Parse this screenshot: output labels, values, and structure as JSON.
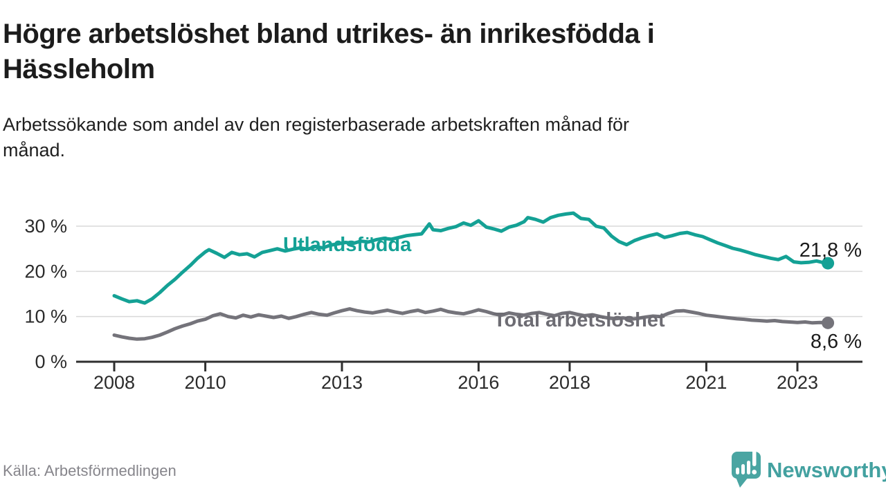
{
  "header": {
    "title_lines": [
      "Högre arbetslöshet bland utrikes- än inrikesfödda i",
      "Hässleholm"
    ],
    "subtitle_lines": [
      "Arbetssökande som andel av den registerbaserade arbetskraften månad för",
      "månad."
    ]
  },
  "footer": {
    "source": "Källa: Arbetsförmedlingen",
    "logo_text": "Newsworthy"
  },
  "colors": {
    "teal": "#14a195",
    "gray_line": "#74737a",
    "gray_label": "#6d6c73",
    "text_dark": "#1c1c1c",
    "axis": "#2f2f2f",
    "tick_text": "#2b2b2b",
    "gridline": "#d9d9d9",
    "source_text": "#86858b",
    "logo_teal": "#4aa5a2"
  },
  "chart_data": {
    "type": "line",
    "title": "Högre arbetslöshet bland utrikes- än inrikesfödda i Hässleholm",
    "subtitle": "Arbetssökande som andel av den registerbaserade arbetskraften månad för månad.",
    "xlabel": "",
    "ylabel": "",
    "x_unit": "year (monthly data)",
    "y_unit": "%",
    "xlim": [
      2007.15,
      2024.45
    ],
    "ylim": [
      0,
      34
    ],
    "grid": "horizontal",
    "legend_position": "inline-labels",
    "x_ticks": [
      2008,
      2010,
      2013,
      2016,
      2018,
      2021,
      2023
    ],
    "y_ticks": [
      0,
      10,
      20,
      30
    ],
    "y_tick_labels": [
      "0 %",
      "10 %",
      "20 %",
      "30 %"
    ],
    "series": [
      {
        "name": "Utlandsfödda",
        "color_key": "teal",
        "end_label": "21,8 %",
        "end_value": 21.8,
        "points": [
          [
            2008.0,
            14.6
          ],
          [
            2008.17,
            13.9
          ],
          [
            2008.33,
            13.3
          ],
          [
            2008.5,
            13.5
          ],
          [
            2008.67,
            13.0
          ],
          [
            2008.83,
            13.9
          ],
          [
            2009.0,
            15.3
          ],
          [
            2009.17,
            16.9
          ],
          [
            2009.33,
            18.2
          ],
          [
            2009.5,
            19.8
          ],
          [
            2009.67,
            21.3
          ],
          [
            2009.83,
            22.9
          ],
          [
            2010.0,
            24.3
          ],
          [
            2010.08,
            24.8
          ],
          [
            2010.25,
            24.0
          ],
          [
            2010.42,
            23.1
          ],
          [
            2010.58,
            24.2
          ],
          [
            2010.75,
            23.7
          ],
          [
            2010.92,
            23.9
          ],
          [
            2011.08,
            23.2
          ],
          [
            2011.25,
            24.2
          ],
          [
            2011.42,
            24.6
          ],
          [
            2011.58,
            25.0
          ],
          [
            2011.75,
            24.5
          ],
          [
            2011.92,
            24.9
          ],
          [
            2012.08,
            25.2
          ],
          [
            2012.25,
            24.9
          ],
          [
            2012.42,
            25.5
          ],
          [
            2012.58,
            25.2
          ],
          [
            2012.75,
            25.8
          ],
          [
            2012.92,
            26.1
          ],
          [
            2013.08,
            26.4
          ],
          [
            2013.25,
            26.2
          ],
          [
            2013.42,
            26.7
          ],
          [
            2013.58,
            26.5
          ],
          [
            2013.75,
            27.0
          ],
          [
            2013.92,
            27.3
          ],
          [
            2014.08,
            27.1
          ],
          [
            2014.25,
            27.5
          ],
          [
            2014.42,
            27.9
          ],
          [
            2014.58,
            28.1
          ],
          [
            2014.75,
            28.3
          ],
          [
            2014.92,
            30.5
          ],
          [
            2015.0,
            29.2
          ],
          [
            2015.17,
            29.0
          ],
          [
            2015.33,
            29.5
          ],
          [
            2015.5,
            29.9
          ],
          [
            2015.67,
            30.7
          ],
          [
            2015.83,
            30.2
          ],
          [
            2016.0,
            31.2
          ],
          [
            2016.17,
            29.8
          ],
          [
            2016.33,
            29.4
          ],
          [
            2016.5,
            28.9
          ],
          [
            2016.67,
            29.8
          ],
          [
            2016.83,
            30.2
          ],
          [
            2017.0,
            31.0
          ],
          [
            2017.08,
            31.9
          ],
          [
            2017.25,
            31.5
          ],
          [
            2017.42,
            30.9
          ],
          [
            2017.58,
            31.9
          ],
          [
            2017.75,
            32.4
          ],
          [
            2017.92,
            32.7
          ],
          [
            2018.08,
            32.9
          ],
          [
            2018.25,
            31.7
          ],
          [
            2018.42,
            31.5
          ],
          [
            2018.58,
            30.0
          ],
          [
            2018.75,
            29.6
          ],
          [
            2018.92,
            27.8
          ],
          [
            2019.08,
            26.6
          ],
          [
            2019.25,
            25.9
          ],
          [
            2019.42,
            26.8
          ],
          [
            2019.58,
            27.4
          ],
          [
            2019.75,
            27.9
          ],
          [
            2019.92,
            28.3
          ],
          [
            2020.08,
            27.5
          ],
          [
            2020.25,
            27.9
          ],
          [
            2020.42,
            28.4
          ],
          [
            2020.58,
            28.6
          ],
          [
            2020.75,
            28.1
          ],
          [
            2020.92,
            27.7
          ],
          [
            2021.08,
            27.0
          ],
          [
            2021.25,
            26.3
          ],
          [
            2021.42,
            25.7
          ],
          [
            2021.58,
            25.1
          ],
          [
            2021.75,
            24.7
          ],
          [
            2021.92,
            24.2
          ],
          [
            2022.08,
            23.7
          ],
          [
            2022.25,
            23.3
          ],
          [
            2022.42,
            22.9
          ],
          [
            2022.58,
            22.6
          ],
          [
            2022.75,
            23.3
          ],
          [
            2022.92,
            22.1
          ],
          [
            2023.08,
            21.9
          ],
          [
            2023.25,
            22.0
          ],
          [
            2023.42,
            22.3
          ],
          [
            2023.58,
            21.9
          ],
          [
            2023.67,
            21.8
          ]
        ]
      },
      {
        "name": "Total arbetslöshet",
        "color_key": "gray_line",
        "end_label": "8,6 %",
        "end_value": 8.6,
        "points": [
          [
            2008.0,
            5.9
          ],
          [
            2008.17,
            5.5
          ],
          [
            2008.33,
            5.2
          ],
          [
            2008.5,
            5.0
          ],
          [
            2008.67,
            5.1
          ],
          [
            2008.83,
            5.4
          ],
          [
            2009.0,
            5.9
          ],
          [
            2009.17,
            6.6
          ],
          [
            2009.33,
            7.3
          ],
          [
            2009.5,
            7.9
          ],
          [
            2009.67,
            8.4
          ],
          [
            2009.83,
            9.0
          ],
          [
            2010.0,
            9.4
          ],
          [
            2010.17,
            10.2
          ],
          [
            2010.33,
            10.6
          ],
          [
            2010.5,
            10.0
          ],
          [
            2010.67,
            9.7
          ],
          [
            2010.83,
            10.3
          ],
          [
            2011.0,
            9.9
          ],
          [
            2011.17,
            10.4
          ],
          [
            2011.33,
            10.1
          ],
          [
            2011.5,
            9.8
          ],
          [
            2011.67,
            10.1
          ],
          [
            2011.83,
            9.6
          ],
          [
            2012.0,
            10.0
          ],
          [
            2012.17,
            10.5
          ],
          [
            2012.33,
            10.9
          ],
          [
            2012.5,
            10.5
          ],
          [
            2012.67,
            10.3
          ],
          [
            2012.83,
            10.8
          ],
          [
            2013.0,
            11.3
          ],
          [
            2013.17,
            11.7
          ],
          [
            2013.33,
            11.3
          ],
          [
            2013.5,
            11.0
          ],
          [
            2013.67,
            10.8
          ],
          [
            2013.83,
            11.1
          ],
          [
            2014.0,
            11.4
          ],
          [
            2014.17,
            11.0
          ],
          [
            2014.33,
            10.7
          ],
          [
            2014.5,
            11.1
          ],
          [
            2014.67,
            11.4
          ],
          [
            2014.83,
            10.9
          ],
          [
            2015.0,
            11.2
          ],
          [
            2015.17,
            11.6
          ],
          [
            2015.33,
            11.1
          ],
          [
            2015.5,
            10.8
          ],
          [
            2015.67,
            10.6
          ],
          [
            2015.83,
            11.0
          ],
          [
            2016.0,
            11.5
          ],
          [
            2016.17,
            11.1
          ],
          [
            2016.33,
            10.6
          ],
          [
            2016.5,
            10.3
          ],
          [
            2016.67,
            10.8
          ],
          [
            2016.83,
            10.5
          ],
          [
            2017.0,
            10.3
          ],
          [
            2017.17,
            10.7
          ],
          [
            2017.33,
            10.9
          ],
          [
            2017.5,
            10.5
          ],
          [
            2017.67,
            10.2
          ],
          [
            2017.83,
            10.7
          ],
          [
            2018.0,
            10.9
          ],
          [
            2018.17,
            10.5
          ],
          [
            2018.33,
            10.2
          ],
          [
            2018.5,
            10.4
          ],
          [
            2018.67,
            10.0
          ],
          [
            2018.83,
            9.7
          ],
          [
            2019.0,
            9.5
          ],
          [
            2019.17,
            9.7
          ],
          [
            2019.33,
            9.4
          ],
          [
            2019.5,
            9.6
          ],
          [
            2019.67,
            9.9
          ],
          [
            2019.83,
            10.1
          ],
          [
            2020.0,
            10.0
          ],
          [
            2020.17,
            10.7
          ],
          [
            2020.33,
            11.2
          ],
          [
            2020.5,
            11.3
          ],
          [
            2020.67,
            11.0
          ],
          [
            2020.83,
            10.7
          ],
          [
            2021.0,
            10.3
          ],
          [
            2021.17,
            10.1
          ],
          [
            2021.33,
            9.9
          ],
          [
            2021.5,
            9.7
          ],
          [
            2021.67,
            9.5
          ],
          [
            2021.83,
            9.4
          ],
          [
            2022.0,
            9.2
          ],
          [
            2022.17,
            9.1
          ],
          [
            2022.33,
            9.0
          ],
          [
            2022.5,
            9.1
          ],
          [
            2022.67,
            8.9
          ],
          [
            2022.83,
            8.8
          ],
          [
            2023.0,
            8.7
          ],
          [
            2023.17,
            8.8
          ],
          [
            2023.33,
            8.6
          ],
          [
            2023.5,
            8.7
          ],
          [
            2023.67,
            8.6
          ]
        ]
      }
    ]
  }
}
